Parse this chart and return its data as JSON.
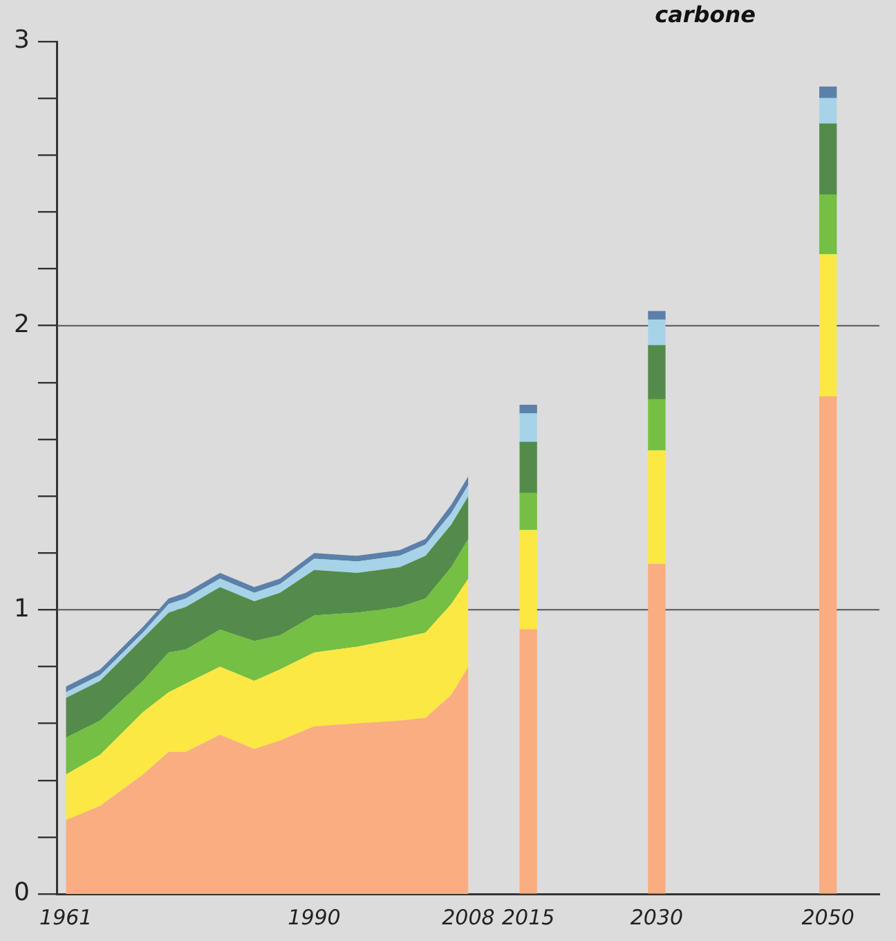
{
  "chart_data": {
    "type": "area",
    "title": "carbone",
    "stacked": true,
    "legend": false,
    "grid": false,
    "marker": "none",
    "x": [
      1961,
      1965,
      1970,
      1973,
      1975,
      1979,
      1983,
      1986,
      1990,
      1995,
      2000,
      2003,
      2006,
      2008,
      2015,
      2030,
      2050
    ],
    "xlim": [
      1960,
      2056
    ],
    "xticks": [
      1961,
      1990,
      2008,
      2015,
      2030,
      2050
    ],
    "ylim": [
      0,
      3
    ],
    "yticks": [
      0,
      {
        "value": 0.2,
        "label": null
      },
      {
        "value": 0.4,
        "label": null
      },
      {
        "value": 0.6,
        "label": null
      },
      {
        "value": 0.8,
        "label": null
      },
      1,
      {
        "value": 1.2,
        "label": null
      },
      {
        "value": 1.4,
        "label": null
      },
      {
        "value": 1.6,
        "label": null
      },
      {
        "value": 1.8,
        "label": null
      },
      2,
      {
        "value": 2.2,
        "label": null
      },
      {
        "value": 2.4,
        "label": null
      },
      {
        "value": 2.6,
        "label": null
      },
      {
        "value": 2.8,
        "label": null
      },
      3
    ],
    "ref_lines": [
      {
        "axis": "y",
        "value": 1,
        "color": "#555555"
      },
      {
        "axis": "y",
        "value": 2,
        "color": "#555555"
      }
    ],
    "series": [
      {
        "color": "#f9ad80",
        "values": [
          0.26,
          0.31,
          0.42,
          0.5,
          0.5,
          0.56,
          0.51,
          0.54,
          0.59,
          0.6,
          0.61,
          0.62,
          0.7,
          0.8,
          null,
          null,
          null
        ]
      },
      {
        "color": "#fbe843",
        "values": [
          0.16,
          0.18,
          0.22,
          0.21,
          0.24,
          0.24,
          0.24,
          0.25,
          0.26,
          0.27,
          0.29,
          0.3,
          0.32,
          0.31,
          null,
          null,
          null
        ]
      },
      {
        "color": "#74bf44",
        "values": [
          0.13,
          0.12,
          0.11,
          0.14,
          0.12,
          0.13,
          0.14,
          0.12,
          0.13,
          0.12,
          0.11,
          0.12,
          0.13,
          0.14,
          null,
          null,
          null
        ]
      },
      {
        "color": "#538c4a",
        "values": [
          0.14,
          0.14,
          0.15,
          0.14,
          0.15,
          0.15,
          0.14,
          0.15,
          0.16,
          0.14,
          0.14,
          0.15,
          0.15,
          0.15,
          null,
          null,
          null
        ]
      },
      {
        "color": "#a7d3e8",
        "values": [
          0.02,
          0.02,
          0.02,
          0.03,
          0.03,
          0.03,
          0.03,
          0.03,
          0.04,
          0.04,
          0.04,
          0.04,
          0.04,
          0.04,
          null,
          null,
          null
        ]
      },
      {
        "color": "#5b80aa",
        "values": [
          0.02,
          0.02,
          0.02,
          0.02,
          0.02,
          0.02,
          0.02,
          0.02,
          0.02,
          0.02,
          0.02,
          0.02,
          0.03,
          0.03,
          null,
          null,
          null
        ]
      },
      {
        "type": "bar",
        "color": "#f9ad80",
        "values": [
          null,
          null,
          null,
          null,
          null,
          null,
          null,
          null,
          null,
          null,
          null,
          null,
          null,
          null,
          0.93,
          1.16,
          1.75
        ]
      },
      {
        "type": "bar",
        "color": "#fbe843",
        "values": [
          null,
          null,
          null,
          null,
          null,
          null,
          null,
          null,
          null,
          null,
          null,
          null,
          null,
          null,
          0.35,
          0.4,
          0.5
        ]
      },
      {
        "type": "bar",
        "color": "#74bf44",
        "values": [
          null,
          null,
          null,
          null,
          null,
          null,
          null,
          null,
          null,
          null,
          null,
          null,
          null,
          null,
          0.13,
          0.18,
          0.21
        ]
      },
      {
        "type": "bar",
        "color": "#538c4a",
        "values": [
          null,
          null,
          null,
          null,
          null,
          null,
          null,
          null,
          null,
          null,
          null,
          null,
          null,
          null,
          0.18,
          0.19,
          0.25
        ]
      },
      {
        "type": "bar",
        "color": "#a7d3e8",
        "values": [
          null,
          null,
          null,
          null,
          null,
          null,
          null,
          null,
          null,
          null,
          null,
          null,
          null,
          null,
          0.1,
          0.09,
          0.09
        ]
      },
      {
        "type": "bar",
        "color": "#5b80aa",
        "values": [
          null,
          null,
          null,
          null,
          null,
          null,
          null,
          null,
          null,
          null,
          null,
          null,
          null,
          null,
          0.03,
          0.03,
          0.04
        ]
      }
    ]
  }
}
